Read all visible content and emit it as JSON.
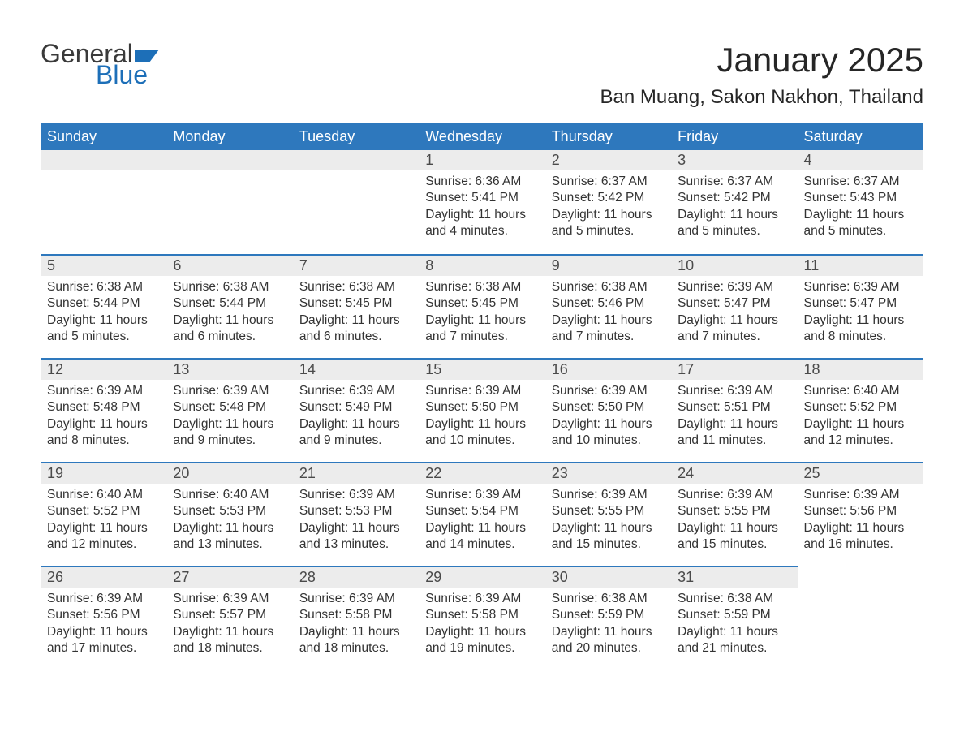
{
  "logo": {
    "text_general": "General",
    "text_blue": "Blue",
    "flag_color": "#1d6fb8",
    "text_general_color": "#3a3a3a"
  },
  "header": {
    "month_title": "January 2025",
    "location": "Ban Muang, Sakon Nakhon, Thailand"
  },
  "colors": {
    "header_row_bg": "#2e78bd",
    "header_row_text": "#ffffff",
    "day_border_top": "#2e78bd",
    "daynum_bg": "#ececec",
    "daynum_text": "#4a4a4a",
    "body_text": "#333333",
    "page_bg": "#ffffff"
  },
  "weekdays": [
    "Sunday",
    "Monday",
    "Tuesday",
    "Wednesday",
    "Thursday",
    "Friday",
    "Saturday"
  ],
  "weeks": [
    [
      {
        "blank": true
      },
      {
        "blank": true
      },
      {
        "blank": true
      },
      {
        "day": "1",
        "sunrise": "Sunrise: 6:36 AM",
        "sunset": "Sunset: 5:41 PM",
        "daylight1": "Daylight: 11 hours",
        "daylight2": "and 4 minutes."
      },
      {
        "day": "2",
        "sunrise": "Sunrise: 6:37 AM",
        "sunset": "Sunset: 5:42 PM",
        "daylight1": "Daylight: 11 hours",
        "daylight2": "and 5 minutes."
      },
      {
        "day": "3",
        "sunrise": "Sunrise: 6:37 AM",
        "sunset": "Sunset: 5:42 PM",
        "daylight1": "Daylight: 11 hours",
        "daylight2": "and 5 minutes."
      },
      {
        "day": "4",
        "sunrise": "Sunrise: 6:37 AM",
        "sunset": "Sunset: 5:43 PM",
        "daylight1": "Daylight: 11 hours",
        "daylight2": "and 5 minutes."
      }
    ],
    [
      {
        "day": "5",
        "sunrise": "Sunrise: 6:38 AM",
        "sunset": "Sunset: 5:44 PM",
        "daylight1": "Daylight: 11 hours",
        "daylight2": "and 5 minutes."
      },
      {
        "day": "6",
        "sunrise": "Sunrise: 6:38 AM",
        "sunset": "Sunset: 5:44 PM",
        "daylight1": "Daylight: 11 hours",
        "daylight2": "and 6 minutes."
      },
      {
        "day": "7",
        "sunrise": "Sunrise: 6:38 AM",
        "sunset": "Sunset: 5:45 PM",
        "daylight1": "Daylight: 11 hours",
        "daylight2": "and 6 minutes."
      },
      {
        "day": "8",
        "sunrise": "Sunrise: 6:38 AM",
        "sunset": "Sunset: 5:45 PM",
        "daylight1": "Daylight: 11 hours",
        "daylight2": "and 7 minutes."
      },
      {
        "day": "9",
        "sunrise": "Sunrise: 6:38 AM",
        "sunset": "Sunset: 5:46 PM",
        "daylight1": "Daylight: 11 hours",
        "daylight2": "and 7 minutes."
      },
      {
        "day": "10",
        "sunrise": "Sunrise: 6:39 AM",
        "sunset": "Sunset: 5:47 PM",
        "daylight1": "Daylight: 11 hours",
        "daylight2": "and 7 minutes."
      },
      {
        "day": "11",
        "sunrise": "Sunrise: 6:39 AM",
        "sunset": "Sunset: 5:47 PM",
        "daylight1": "Daylight: 11 hours",
        "daylight2": "and 8 minutes."
      }
    ],
    [
      {
        "day": "12",
        "sunrise": "Sunrise: 6:39 AM",
        "sunset": "Sunset: 5:48 PM",
        "daylight1": "Daylight: 11 hours",
        "daylight2": "and 8 minutes."
      },
      {
        "day": "13",
        "sunrise": "Sunrise: 6:39 AM",
        "sunset": "Sunset: 5:48 PM",
        "daylight1": "Daylight: 11 hours",
        "daylight2": "and 9 minutes."
      },
      {
        "day": "14",
        "sunrise": "Sunrise: 6:39 AM",
        "sunset": "Sunset: 5:49 PM",
        "daylight1": "Daylight: 11 hours",
        "daylight2": "and 9 minutes."
      },
      {
        "day": "15",
        "sunrise": "Sunrise: 6:39 AM",
        "sunset": "Sunset: 5:50 PM",
        "daylight1": "Daylight: 11 hours",
        "daylight2": "and 10 minutes."
      },
      {
        "day": "16",
        "sunrise": "Sunrise: 6:39 AM",
        "sunset": "Sunset: 5:50 PM",
        "daylight1": "Daylight: 11 hours",
        "daylight2": "and 10 minutes."
      },
      {
        "day": "17",
        "sunrise": "Sunrise: 6:39 AM",
        "sunset": "Sunset: 5:51 PM",
        "daylight1": "Daylight: 11 hours",
        "daylight2": "and 11 minutes."
      },
      {
        "day": "18",
        "sunrise": "Sunrise: 6:40 AM",
        "sunset": "Sunset: 5:52 PM",
        "daylight1": "Daylight: 11 hours",
        "daylight2": "and 12 minutes."
      }
    ],
    [
      {
        "day": "19",
        "sunrise": "Sunrise: 6:40 AM",
        "sunset": "Sunset: 5:52 PM",
        "daylight1": "Daylight: 11 hours",
        "daylight2": "and 12 minutes."
      },
      {
        "day": "20",
        "sunrise": "Sunrise: 6:40 AM",
        "sunset": "Sunset: 5:53 PM",
        "daylight1": "Daylight: 11 hours",
        "daylight2": "and 13 minutes."
      },
      {
        "day": "21",
        "sunrise": "Sunrise: 6:39 AM",
        "sunset": "Sunset: 5:53 PM",
        "daylight1": "Daylight: 11 hours",
        "daylight2": "and 13 minutes."
      },
      {
        "day": "22",
        "sunrise": "Sunrise: 6:39 AM",
        "sunset": "Sunset: 5:54 PM",
        "daylight1": "Daylight: 11 hours",
        "daylight2": "and 14 minutes."
      },
      {
        "day": "23",
        "sunrise": "Sunrise: 6:39 AM",
        "sunset": "Sunset: 5:55 PM",
        "daylight1": "Daylight: 11 hours",
        "daylight2": "and 15 minutes."
      },
      {
        "day": "24",
        "sunrise": "Sunrise: 6:39 AM",
        "sunset": "Sunset: 5:55 PM",
        "daylight1": "Daylight: 11 hours",
        "daylight2": "and 15 minutes."
      },
      {
        "day": "25",
        "sunrise": "Sunrise: 6:39 AM",
        "sunset": "Sunset: 5:56 PM",
        "daylight1": "Daylight: 11 hours",
        "daylight2": "and 16 minutes."
      }
    ],
    [
      {
        "day": "26",
        "sunrise": "Sunrise: 6:39 AM",
        "sunset": "Sunset: 5:56 PM",
        "daylight1": "Daylight: 11 hours",
        "daylight2": "and 17 minutes."
      },
      {
        "day": "27",
        "sunrise": "Sunrise: 6:39 AM",
        "sunset": "Sunset: 5:57 PM",
        "daylight1": "Daylight: 11 hours",
        "daylight2": "and 18 minutes."
      },
      {
        "day": "28",
        "sunrise": "Sunrise: 6:39 AM",
        "sunset": "Sunset: 5:58 PM",
        "daylight1": "Daylight: 11 hours",
        "daylight2": "and 18 minutes."
      },
      {
        "day": "29",
        "sunrise": "Sunrise: 6:39 AM",
        "sunset": "Sunset: 5:58 PM",
        "daylight1": "Daylight: 11 hours",
        "daylight2": "and 19 minutes."
      },
      {
        "day": "30",
        "sunrise": "Sunrise: 6:38 AM",
        "sunset": "Sunset: 5:59 PM",
        "daylight1": "Daylight: 11 hours",
        "daylight2": "and 20 minutes."
      },
      {
        "day": "31",
        "sunrise": "Sunrise: 6:38 AM",
        "sunset": "Sunset: 5:59 PM",
        "daylight1": "Daylight: 11 hours",
        "daylight2": "and 21 minutes."
      },
      {
        "blank": true,
        "trailing": true
      }
    ]
  ]
}
